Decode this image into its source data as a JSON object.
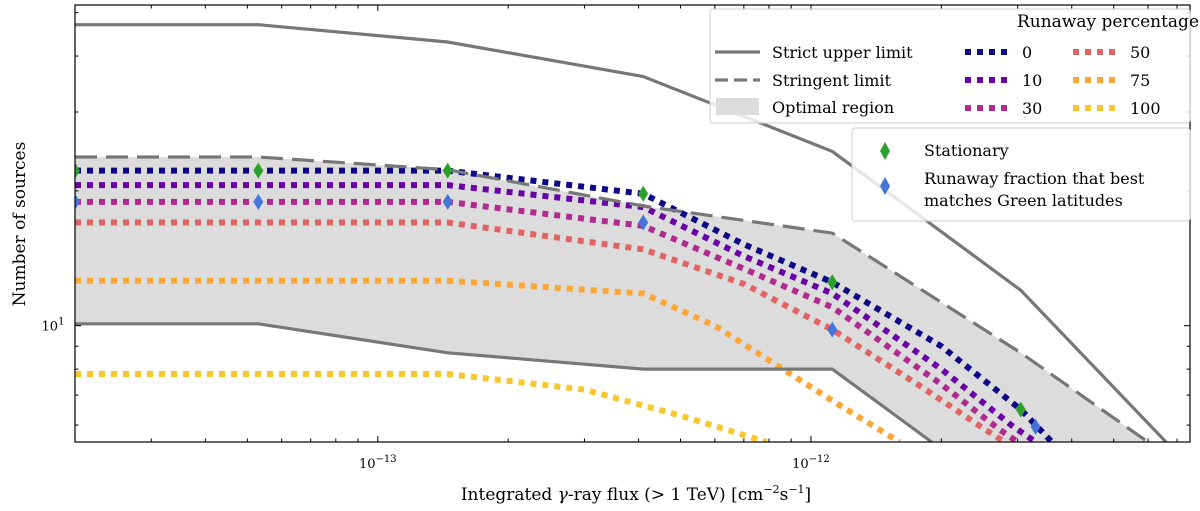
{
  "chart_data": {
    "type": "line",
    "xlabel_main": "Integrated ",
    "xlabel_gamma": "γ",
    "xlabel_rest": "-ray flux (> 1 TeV) [cm",
    "xlabel_exp1": "−2",
    "xlabel_mid": "s",
    "xlabel_exp2": "−1",
    "xlabel_end": "]",
    "ylabel": "Number of sources",
    "xscale": "log",
    "yscale": "log",
    "xlim": [
      2e-14,
      7.5e-12
    ],
    "ylim": [
      5.5,
      52
    ],
    "x_ticks": [
      {
        "value": 1e-13,
        "base": "10",
        "exp": "−13"
      },
      {
        "value": 1e-12,
        "base": "10",
        "exp": "−12"
      }
    ],
    "y_ticks": [
      {
        "value": 10,
        "base": "10",
        "exp": "1"
      }
    ],
    "x_nodes": [
      2e-14,
      5.3e-14,
      1.45e-13,
      4.1e-13,
      1.12e-12,
      3.05e-12,
      6e-12
    ],
    "strict_upper_limit": {
      "label": "Strict upper limit",
      "x": [
        2e-14,
        5.3e-14,
        1.45e-13,
        4.1e-13,
        1.12e-12,
        3.05e-12,
        6.6e-12
      ],
      "y": [
        47,
        47,
        43,
        36,
        24.5,
        12,
        5.5
      ]
    },
    "strict_lower_limit": {
      "x": [
        2e-14,
        5.3e-14,
        1.45e-13,
        4.1e-13,
        1.12e-12,
        1.9e-12
      ],
      "y": [
        10.1,
        10.1,
        8.7,
        8,
        8,
        5.5
      ]
    },
    "stringent_limit": {
      "label": "Stringent limit",
      "x": [
        2e-14,
        5.3e-14,
        1.45e-13,
        4.1e-13,
        1.12e-12,
        3.05e-12,
        6e-12
      ],
      "y": [
        23.8,
        23.8,
        22.3,
        18.5,
        16.1,
        8.7,
        5.5
      ]
    },
    "optimal_region": {
      "label": "Optimal region",
      "upper_x": [
        2e-14,
        5.3e-14,
        1.45e-13,
        4.1e-13,
        1.12e-12,
        3.05e-12,
        6e-12
      ],
      "upper_y": [
        23.8,
        23.8,
        22.3,
        18.5,
        16.1,
        8.7,
        5.5
      ],
      "lower_x": [
        2e-14,
        5.3e-14,
        1.45e-13,
        4.1e-13,
        1.12e-12,
        1.9e-12,
        6e-12
      ],
      "lower_y": [
        10.1,
        10.1,
        8.7,
        8,
        8,
        5.5,
        5.5
      ]
    },
    "legend_title": "Runaway percentage",
    "runaway_series": [
      {
        "name": "0",
        "color": "#0d0887",
        "x": [
          2e-14,
          5.3e-14,
          1.45e-13,
          4.1e-13,
          7e-13,
          1.12e-12,
          2e-12,
          3.05e-12,
          3.6e-12
        ],
        "y": [
          22.2,
          22.2,
          22.2,
          19.7,
          15.2,
          12.5,
          9.0,
          6.5,
          5.5
        ]
      },
      {
        "name": "10",
        "color": "#6a00a8",
        "x": [
          2e-14,
          5.3e-14,
          1.45e-13,
          4.1e-13,
          7e-13,
          1.12e-12,
          2e-12,
          2.9e-12,
          3.3e-12
        ],
        "y": [
          20.6,
          20.6,
          20.6,
          18.4,
          14.3,
          11.8,
          8.0,
          6.0,
          5.5
        ]
      },
      {
        "name": "30",
        "color": "#b12a90",
        "x": [
          2e-14,
          5.3e-14,
          1.45e-13,
          4.1e-13,
          7e-13,
          1.12e-12,
          2e-12,
          2.7e-12,
          3e-12
        ],
        "y": [
          18.9,
          18.9,
          18.9,
          16.7,
          13.4,
          11.0,
          7.4,
          5.9,
          5.5
        ]
      },
      {
        "name": "50",
        "color": "#e16462",
        "x": [
          2e-14,
          5.3e-14,
          1.45e-13,
          4.1e-13,
          7e-13,
          1.12e-12,
          1.8e-12,
          2.5e-12,
          2.8e-12
        ],
        "y": [
          17.0,
          17.0,
          17.0,
          14.8,
          12.4,
          9.8,
          7.3,
          5.9,
          5.5
        ]
      },
      {
        "name": "75",
        "color": "#fca636",
        "x": [
          2e-14,
          5.3e-14,
          1.45e-13,
          4.1e-13,
          6e-13,
          1.12e-12,
          1.6e-12
        ],
        "y": [
          12.6,
          12.6,
          12.6,
          11.8,
          10.0,
          6.8,
          5.5
        ]
      },
      {
        "name": "100",
        "color": "#f9c62e",
        "x": [
          2e-14,
          5.3e-14,
          1.45e-13,
          3e-13,
          5e-13,
          7.9e-13
        ],
        "y": [
          7.8,
          7.8,
          7.8,
          7.2,
          6.3,
          5.5
        ]
      }
    ],
    "stationary": {
      "label": "Stationary",
      "color": "#2ca02c",
      "x": [
        2e-14,
        5.3e-14,
        1.45e-13,
        4.1e-13,
        1.12e-12,
        3.05e-12
      ],
      "y": [
        22.2,
        22.2,
        22.2,
        19.7,
        12.5,
        6.5
      ]
    },
    "best_match": {
      "label_line1": "Runaway fraction that best",
      "label_line2": "matches Green latitudes",
      "color": "#4575d9",
      "x": [
        2e-14,
        5.3e-14,
        1.45e-13,
        4.1e-13,
        1.12e-12,
        3.3e-12
      ],
      "y": [
        18.9,
        18.9,
        18.9,
        17.0,
        9.8,
        5.95
      ]
    }
  }
}
